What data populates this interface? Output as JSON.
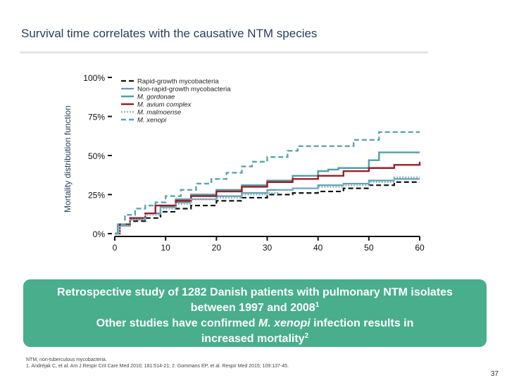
{
  "slide": {
    "title": "Survival time correlates with the causative NTM species",
    "page_number": "37",
    "colors": {
      "accent": "#48ae8c",
      "title": "#2a3f5c"
    }
  },
  "callout": {
    "line1": "Retrospective study of 1282 Danish patients with pulmonary NTM isolates",
    "line2_text": "between 1997 and 2008",
    "line2_sup": "1",
    "line3_prefix": "Other studies have confirmed ",
    "line3_species": "M. xenopi",
    "line3_suffix": " infection results in",
    "line4_text": "increased mortality",
    "line4_sup": "2"
  },
  "footnotes": {
    "line1": "NTM, non-tuberculous mycobacteria.",
    "line2": "1. Andréjak C, et al. Am J Respir Crit Care Med 2010; 181:514-21; 2. Gommans EP, et al. Respir Med 2015; 109:137-45."
  },
  "chart_data": {
    "type": "line",
    "step": true,
    "xlabel": "",
    "ylabel": "Mortality distribution function",
    "xlim": [
      0,
      60
    ],
    "ylim": [
      0,
      1
    ],
    "x_ticks": [
      "0",
      "10",
      "20",
      "30",
      "40",
      "50",
      "60"
    ],
    "y_ticks": [
      "0%",
      "25%",
      "50%",
      "75%",
      "100%"
    ],
    "legend_position": "top-left",
    "series": [
      {
        "name": "Rapid-growth mycobacteria",
        "color": "#111111",
        "dash": "7,4",
        "width": 2.2,
        "points": [
          [
            0,
            0
          ],
          [
            0.6,
            0.05
          ],
          [
            3,
            0.08
          ],
          [
            6,
            0.1
          ],
          [
            9,
            0.14
          ],
          [
            12,
            0.16
          ],
          [
            15,
            0.18
          ],
          [
            20,
            0.21
          ],
          [
            25,
            0.23
          ],
          [
            30,
            0.25
          ],
          [
            35,
            0.26
          ],
          [
            40,
            0.27
          ],
          [
            45,
            0.29
          ],
          [
            50,
            0.31
          ],
          [
            55,
            0.33
          ],
          [
            60,
            0.33
          ]
        ]
      },
      {
        "name": "Non-rapid-growth mycobacteria",
        "color": "#5e9fb0",
        "dash": "",
        "width": 2.2,
        "points": [
          [
            0,
            0
          ],
          [
            0.6,
            0.06
          ],
          [
            3,
            0.1
          ],
          [
            6,
            0.13
          ],
          [
            9,
            0.17
          ],
          [
            12,
            0.2
          ],
          [
            15,
            0.22
          ],
          [
            20,
            0.24
          ],
          [
            25,
            0.26
          ],
          [
            30,
            0.28
          ],
          [
            35,
            0.29
          ],
          [
            40,
            0.31
          ],
          [
            45,
            0.32
          ],
          [
            50,
            0.34
          ],
          [
            55,
            0.35
          ],
          [
            60,
            0.35
          ]
        ]
      },
      {
        "name": "M. gordonae",
        "color": "#4fa0a8",
        "dash": "",
        "width": 2.4,
        "points": [
          [
            0,
            0
          ],
          [
            0.6,
            0.05
          ],
          [
            3,
            0.09
          ],
          [
            6,
            0.13
          ],
          [
            9,
            0.18
          ],
          [
            12,
            0.22
          ],
          [
            15,
            0.25
          ],
          [
            20,
            0.28
          ],
          [
            25,
            0.31
          ],
          [
            30,
            0.34
          ],
          [
            35,
            0.37
          ],
          [
            40,
            0.4
          ],
          [
            42,
            0.41
          ],
          [
            44,
            0.42
          ],
          [
            50,
            0.47
          ],
          [
            52,
            0.52
          ],
          [
            60,
            0.52
          ]
        ]
      },
      {
        "name": "M. avium complex",
        "color": "#a01c24",
        "dash": "",
        "width": 2.4,
        "points": [
          [
            0,
            0
          ],
          [
            1,
            0.06
          ],
          [
            3,
            0.1
          ],
          [
            6,
            0.13
          ],
          [
            8,
            0.18
          ],
          [
            12,
            0.21
          ],
          [
            15,
            0.24
          ],
          [
            20,
            0.27
          ],
          [
            25,
            0.3
          ],
          [
            30,
            0.33
          ],
          [
            35,
            0.35
          ],
          [
            40,
            0.37
          ],
          [
            45,
            0.4
          ],
          [
            50,
            0.42
          ],
          [
            55,
            0.44
          ],
          [
            60,
            0.46
          ]
        ]
      },
      {
        "name": "M. malmoense",
        "color": "#8fb7c8",
        "dash": "2,2",
        "width": 2.6,
        "points": [
          [
            0,
            0
          ],
          [
            1,
            0.05
          ],
          [
            3,
            0.09
          ],
          [
            6,
            0.12
          ],
          [
            9,
            0.16
          ],
          [
            12,
            0.19
          ],
          [
            15,
            0.22
          ],
          [
            20,
            0.23
          ],
          [
            25,
            0.25
          ],
          [
            30,
            0.26
          ],
          [
            32,
            0.28
          ],
          [
            35,
            0.29
          ],
          [
            40,
            0.3
          ],
          [
            45,
            0.31
          ],
          [
            50,
            0.33
          ],
          [
            55,
            0.36
          ],
          [
            60,
            0.36
          ]
        ]
      },
      {
        "name": "M. xenopi",
        "color": "#5aa5b3",
        "dash": "7,4",
        "width": 2.4,
        "points": [
          [
            0,
            0
          ],
          [
            0.6,
            0.06
          ],
          [
            2,
            0.12
          ],
          [
            4,
            0.16
          ],
          [
            6,
            0.18
          ],
          [
            8,
            0.2
          ],
          [
            10,
            0.24
          ],
          [
            13,
            0.28
          ],
          [
            16,
            0.32
          ],
          [
            19,
            0.35
          ],
          [
            22,
            0.39
          ],
          [
            25,
            0.43
          ],
          [
            27,
            0.46
          ],
          [
            30,
            0.49
          ],
          [
            34,
            0.53
          ],
          [
            36,
            0.56
          ],
          [
            45,
            0.56
          ],
          [
            47,
            0.6
          ],
          [
            52,
            0.65
          ],
          [
            60,
            0.65
          ]
        ]
      }
    ]
  }
}
